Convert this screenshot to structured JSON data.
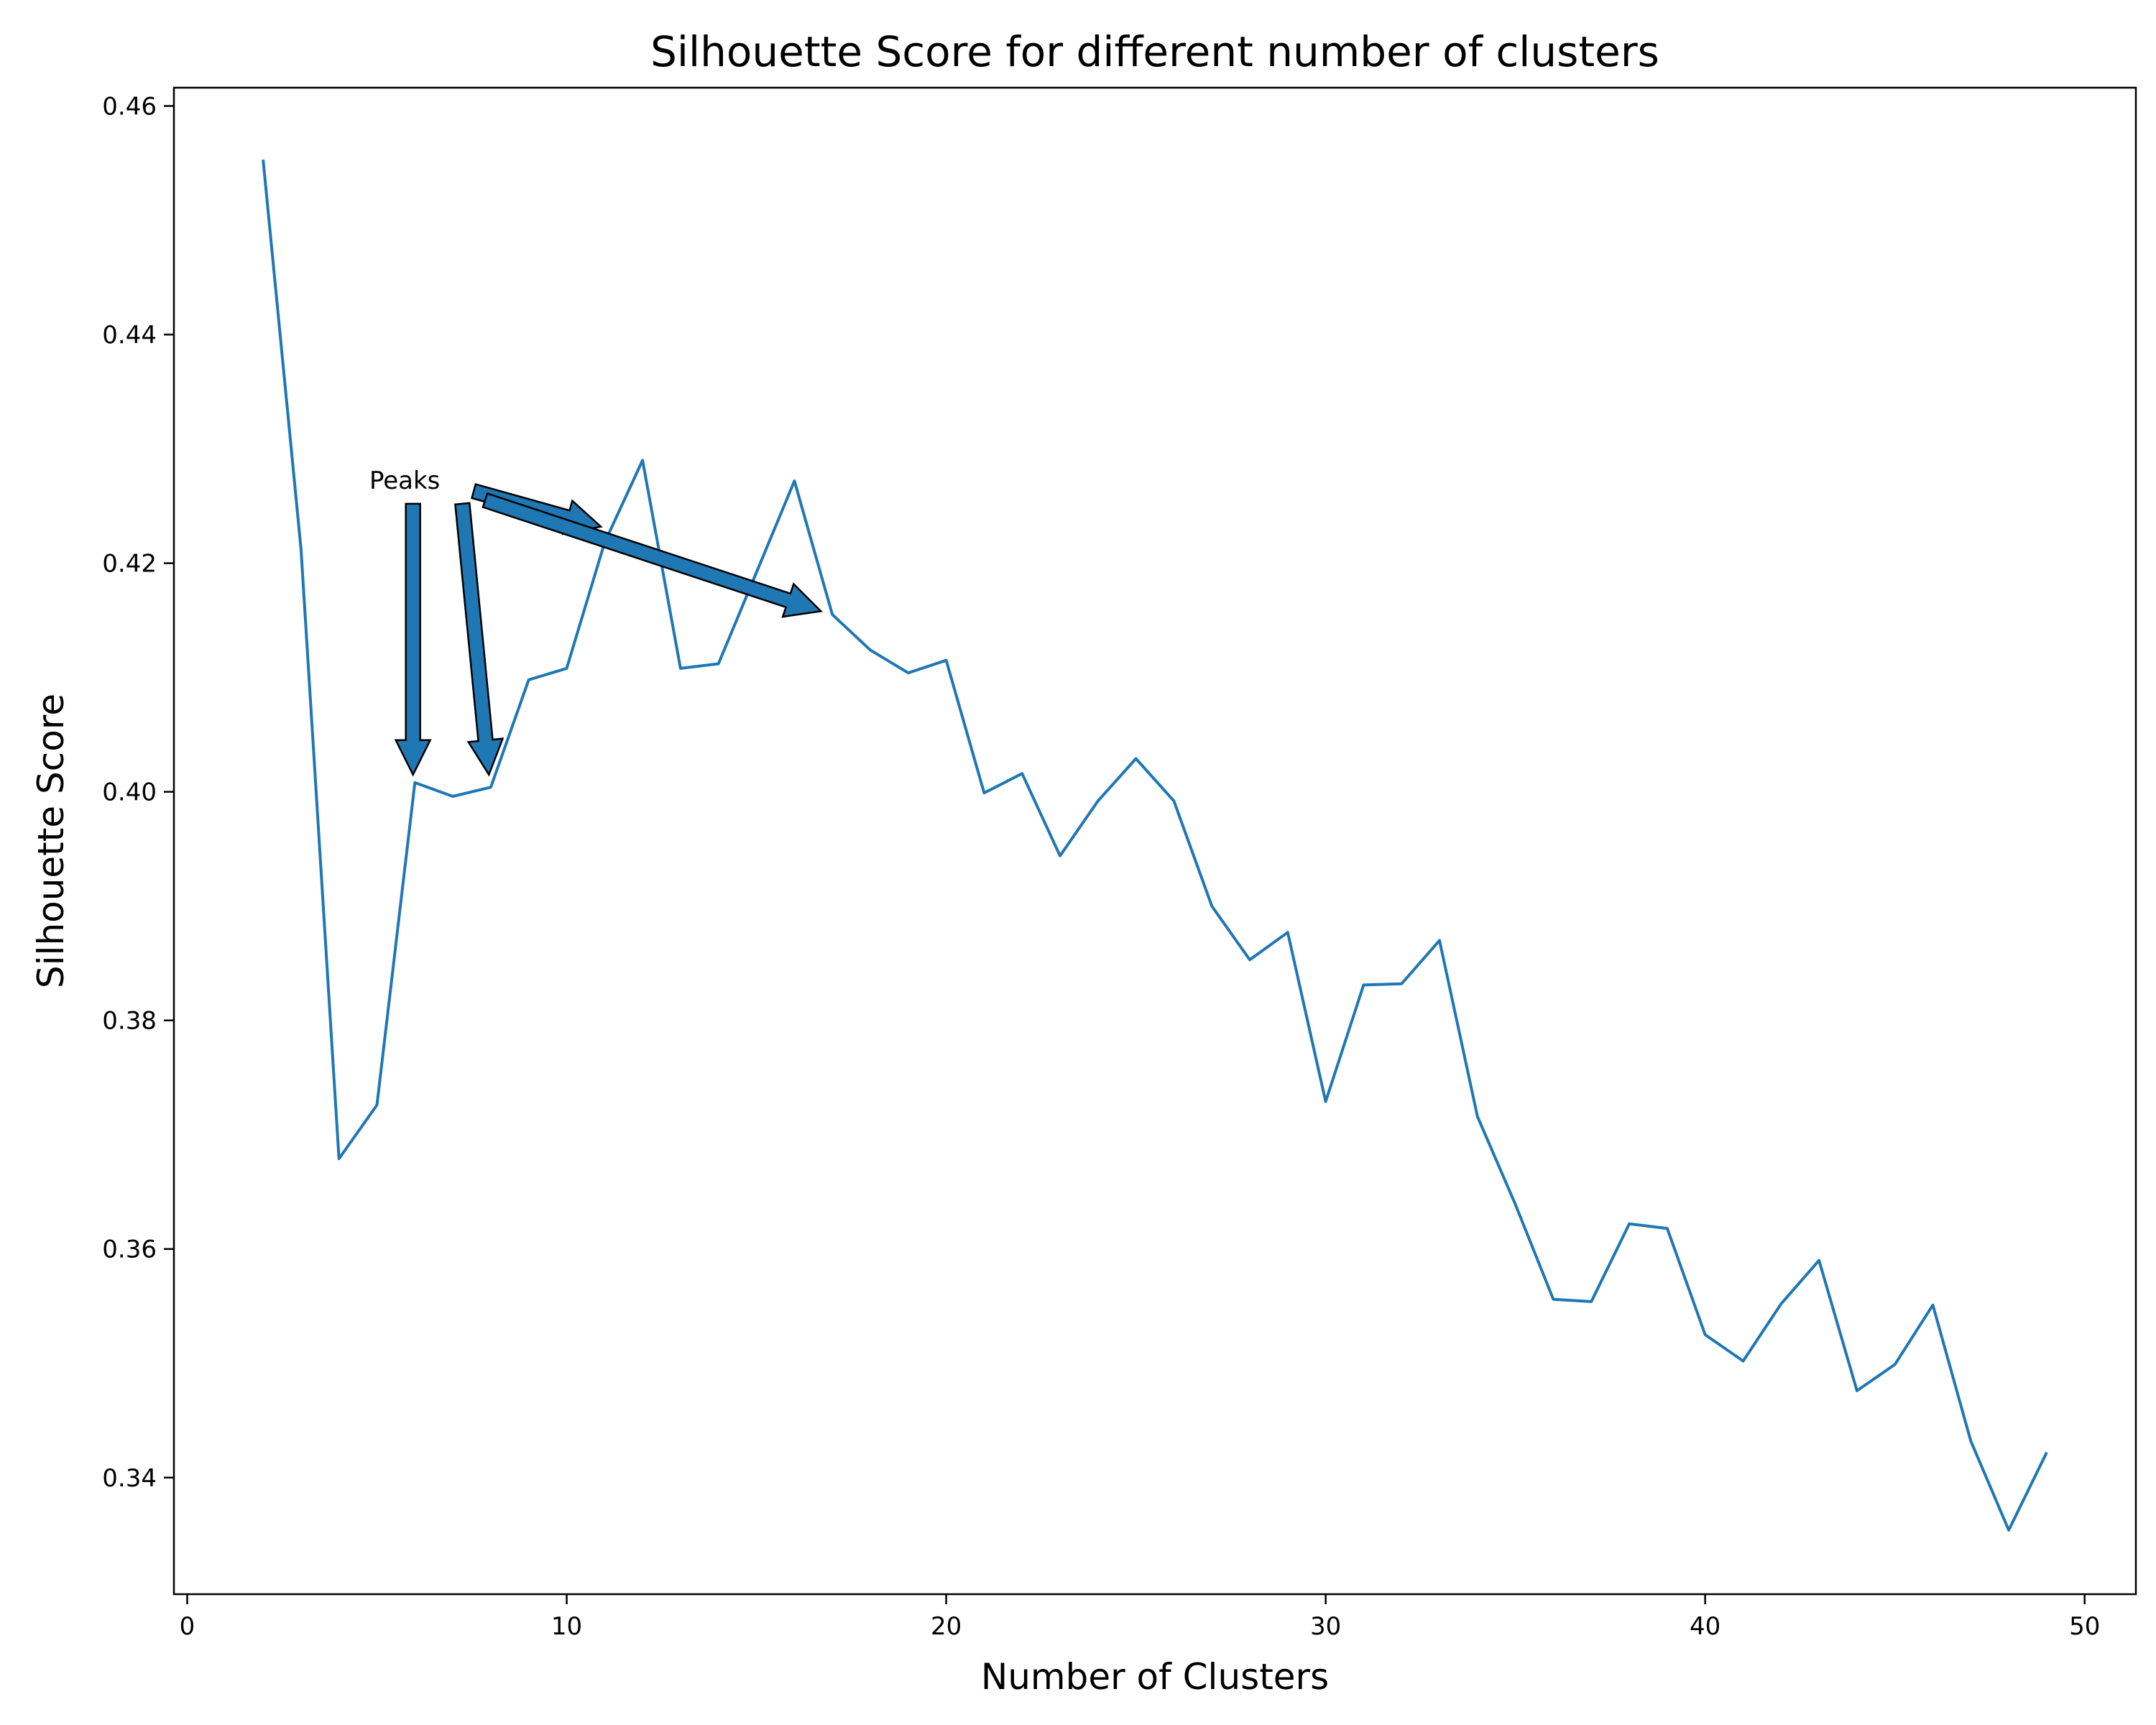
{
  "chart_data": {
    "type": "line",
    "title": "Silhouette Score for different number of clusters",
    "xlabel": "Number of Clusters",
    "ylabel": "Silhouette Score",
    "xlim": [
      -0.35,
      51.35
    ],
    "ylim": [
      0.3298,
      0.4616
    ],
    "xticks": [
      0,
      10,
      20,
      30,
      40,
      50
    ],
    "yticks": [
      0.34,
      0.36,
      0.38,
      0.4,
      0.42,
      0.44,
      0.46
    ],
    "x": [
      2,
      3,
      4,
      5,
      6,
      7,
      8,
      9,
      10,
      11,
      12,
      13,
      14,
      15,
      16,
      17,
      18,
      19,
      20,
      21,
      22,
      23,
      24,
      25,
      26,
      27,
      28,
      29,
      30,
      31,
      32,
      33,
      34,
      35,
      36,
      37,
      38,
      39,
      40,
      41,
      42,
      43,
      44,
      45,
      46,
      47,
      48,
      49
    ],
    "series": [
      {
        "color": "#1f77b4",
        "values": [
          0.4553,
          0.4212,
          0.3679,
          0.3726,
          0.4008,
          0.3996,
          0.4004,
          0.4098,
          0.4108,
          0.4218,
          0.429,
          0.4108,
          0.4112,
          0.4192,
          0.4272,
          0.4155,
          0.4124,
          0.4104,
          0.4115,
          0.3999,
          0.4016,
          0.3944,
          0.3992,
          0.4029,
          0.3992,
          0.39,
          0.3853,
          0.3877,
          0.3729,
          0.3831,
          0.3832,
          0.387,
          0.3716,
          0.3639,
          0.3556,
          0.3554,
          0.3622,
          0.3618,
          0.3525,
          0.3502,
          0.3552,
          0.359,
          0.3476,
          0.3499,
          0.3551,
          0.3432,
          0.3354,
          0.3422
        ]
      }
    ],
    "annotation": {
      "text": "Peaks",
      "text_at": [
        4.8,
        0.4265
      ],
      "arrow_color": "#1f77b4",
      "arrows": [
        {
          "from": [
            5.95,
            0.4252
          ],
          "to": [
            5.95,
            0.4015
          ]
        },
        {
          "from": [
            7.25,
            0.4252
          ],
          "to": [
            7.95,
            0.4015
          ]
        },
        {
          "from": [
            7.55,
            0.4263
          ],
          "to": [
            10.9,
            0.4232
          ]
        },
        {
          "from": [
            7.85,
            0.4255
          ],
          "to": [
            16.7,
            0.4158
          ]
        }
      ]
    },
    "grid": false,
    "legend": "none"
  }
}
